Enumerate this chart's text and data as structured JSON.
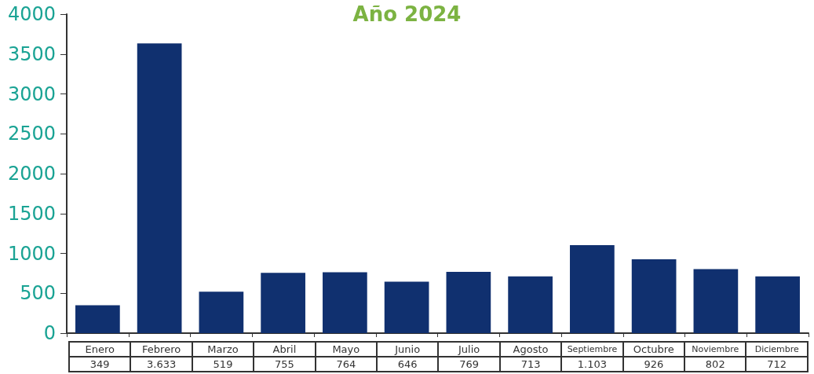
{
  "chart_data": {
    "type": "bar",
    "title": "Año 2024",
    "categories": [
      "Enero",
      "Febrero",
      "Marzo",
      "Abril",
      "Mayo",
      "Junio",
      "Julio",
      "Agosto",
      "Septiembre",
      "Octubre",
      "Noviembre",
      "Diciembre"
    ],
    "values": [
      349,
      3633,
      519,
      755,
      764,
      646,
      769,
      713,
      1103,
      926,
      802,
      712
    ],
    "value_labels": [
      "349",
      "3.633",
      "519",
      "755",
      "764",
      "646",
      "769",
      "713",
      "1.103",
      "926",
      "802",
      "712"
    ],
    "color": "#10306f",
    "ylim": [
      0,
      4000
    ],
    "yticks": [
      0,
      500,
      1000,
      1500,
      2000,
      2500,
      3000,
      3500,
      4000
    ]
  }
}
